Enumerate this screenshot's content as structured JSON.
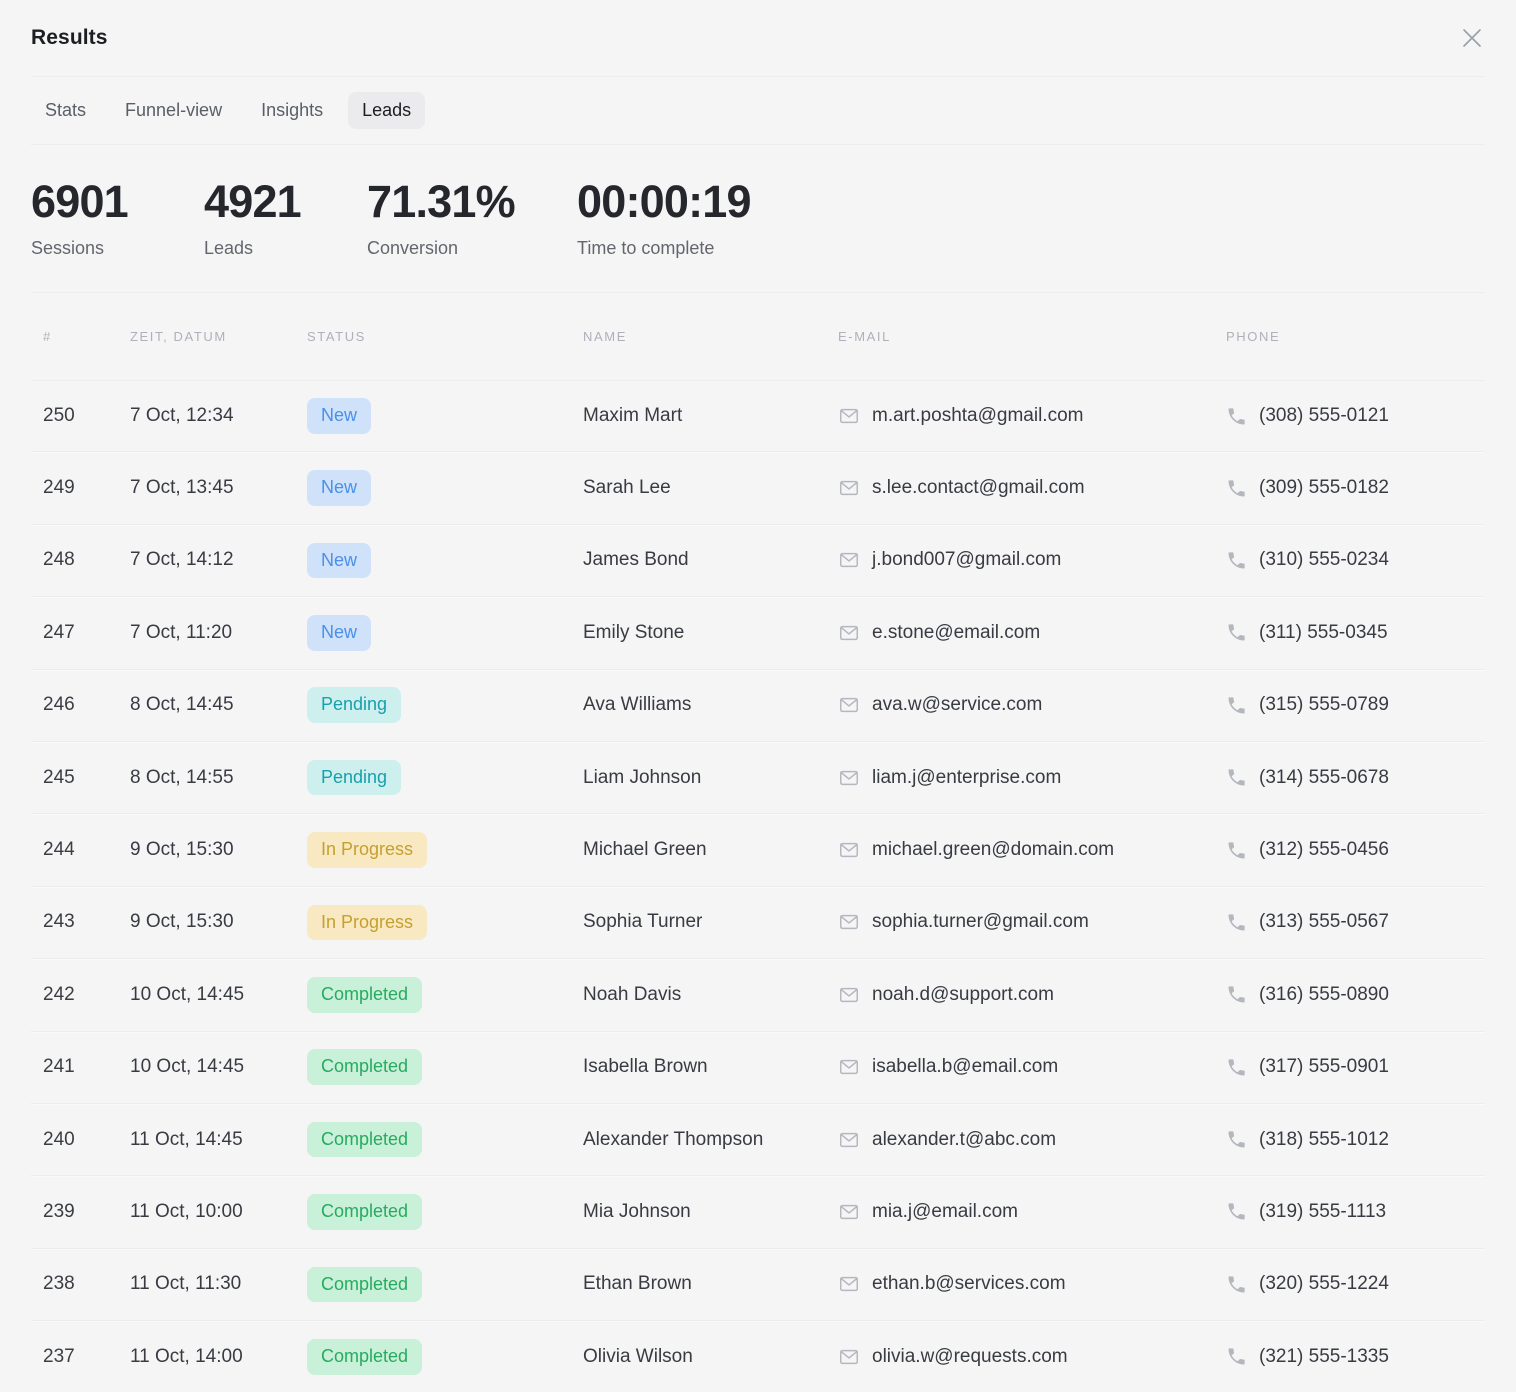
{
  "header": {
    "title": "Results"
  },
  "tabs": [
    {
      "label": "Stats",
      "active": false
    },
    {
      "label": "Funnel-view",
      "active": false
    },
    {
      "label": "Insights",
      "active": false
    },
    {
      "label": "Leads",
      "active": true
    }
  ],
  "stats": [
    {
      "value": "6901",
      "label": "Sessions"
    },
    {
      "value": "4921",
      "label": "Leads"
    },
    {
      "value": "71.31%",
      "label": "Conversion"
    },
    {
      "value": "00:00:19",
      "label": "Time to complete"
    }
  ],
  "table": {
    "columns": [
      "#",
      "ZEIT, DATUM",
      "STATUS",
      "NAME",
      "E-MAIL",
      "PHONE"
    ],
    "status_colors": {
      "new": {
        "bg": "#cfe2fa",
        "text": "#4a90e8"
      },
      "pending": {
        "bg": "#cdf0ee",
        "text": "#17a0ad"
      },
      "in_progress": {
        "bg": "#f9e9c3",
        "text": "#c5a02e"
      },
      "completed": {
        "bg": "#c9f0d9",
        "text": "#27ab5f"
      }
    },
    "rows": [
      {
        "id": "250",
        "datetime": "7 Oct, 12:34",
        "status": "New",
        "status_type": "new",
        "name": "Maxim Mart",
        "email": "m.art.poshta@gmail.com",
        "phone": "(308) 555-0121"
      },
      {
        "id": "249",
        "datetime": "7 Oct, 13:45",
        "status": "New",
        "status_type": "new",
        "name": "Sarah Lee",
        "email": "s.lee.contact@gmail.com",
        "phone": "(309) 555-0182"
      },
      {
        "id": "248",
        "datetime": "7 Oct, 14:12",
        "status": "New",
        "status_type": "new",
        "name": "James Bond",
        "email": "j.bond007@gmail.com",
        "phone": "(310) 555-0234"
      },
      {
        "id": "247",
        "datetime": "7 Oct, 11:20",
        "status": "New",
        "status_type": "new",
        "name": "Emily Stone",
        "email": "e.stone@email.com",
        "phone": "(311) 555-0345"
      },
      {
        "id": "246",
        "datetime": "8 Oct, 14:45",
        "status": "Pending",
        "status_type": "pending",
        "name": "Ava Williams",
        "email": "ava.w@service.com",
        "phone": "(315) 555-0789"
      },
      {
        "id": "245",
        "datetime": "8 Oct, 14:55",
        "status": "Pending",
        "status_type": "pending",
        "name": "Liam Johnson",
        "email": "liam.j@enterprise.com",
        "phone": "(314) 555-0678"
      },
      {
        "id": "244",
        "datetime": "9 Oct, 15:30",
        "status": "In Progress",
        "status_type": "in_progress",
        "name": "Michael Green",
        "email": "michael.green@domain.com",
        "phone": "(312) 555-0456"
      },
      {
        "id": "243",
        "datetime": "9 Oct, 15:30",
        "status": "In Progress",
        "status_type": "in_progress",
        "name": "Sophia Turner",
        "email": "sophia.turner@gmail.com",
        "phone": "(313) 555-0567"
      },
      {
        "id": "242",
        "datetime": "10 Oct, 14:45",
        "status": "Completed",
        "status_type": "completed",
        "name": "Noah Davis",
        "email": "noah.d@support.com",
        "phone": "(316) 555-0890"
      },
      {
        "id": "241",
        "datetime": "10 Oct, 14:45",
        "status": "Completed",
        "status_type": "completed",
        "name": "Isabella Brown",
        "email": "isabella.b@email.com",
        "phone": "(317) 555-0901"
      },
      {
        "id": "240",
        "datetime": "11 Oct, 14:45",
        "status": "Completed",
        "status_type": "completed",
        "name": "Alexander Thompson",
        "email": "alexander.t@abc.com",
        "phone": "(318) 555-1012"
      },
      {
        "id": "239",
        "datetime": "11 Oct, 10:00",
        "status": "Completed",
        "status_type": "completed",
        "name": "Mia Johnson",
        "email": "mia.j@email.com",
        "phone": "(319) 555-1113"
      },
      {
        "id": "238",
        "datetime": "11 Oct, 11:30",
        "status": "Completed",
        "status_type": "completed",
        "name": "Ethan Brown",
        "email": "ethan.b@services.com",
        "phone": "(320) 555-1224"
      },
      {
        "id": "237",
        "datetime": "11 Oct, 14:00",
        "status": "Completed",
        "status_type": "completed",
        "name": "Olivia Wilson",
        "email": "olivia.w@requests.com",
        "phone": "(321) 555-1335"
      }
    ]
  }
}
